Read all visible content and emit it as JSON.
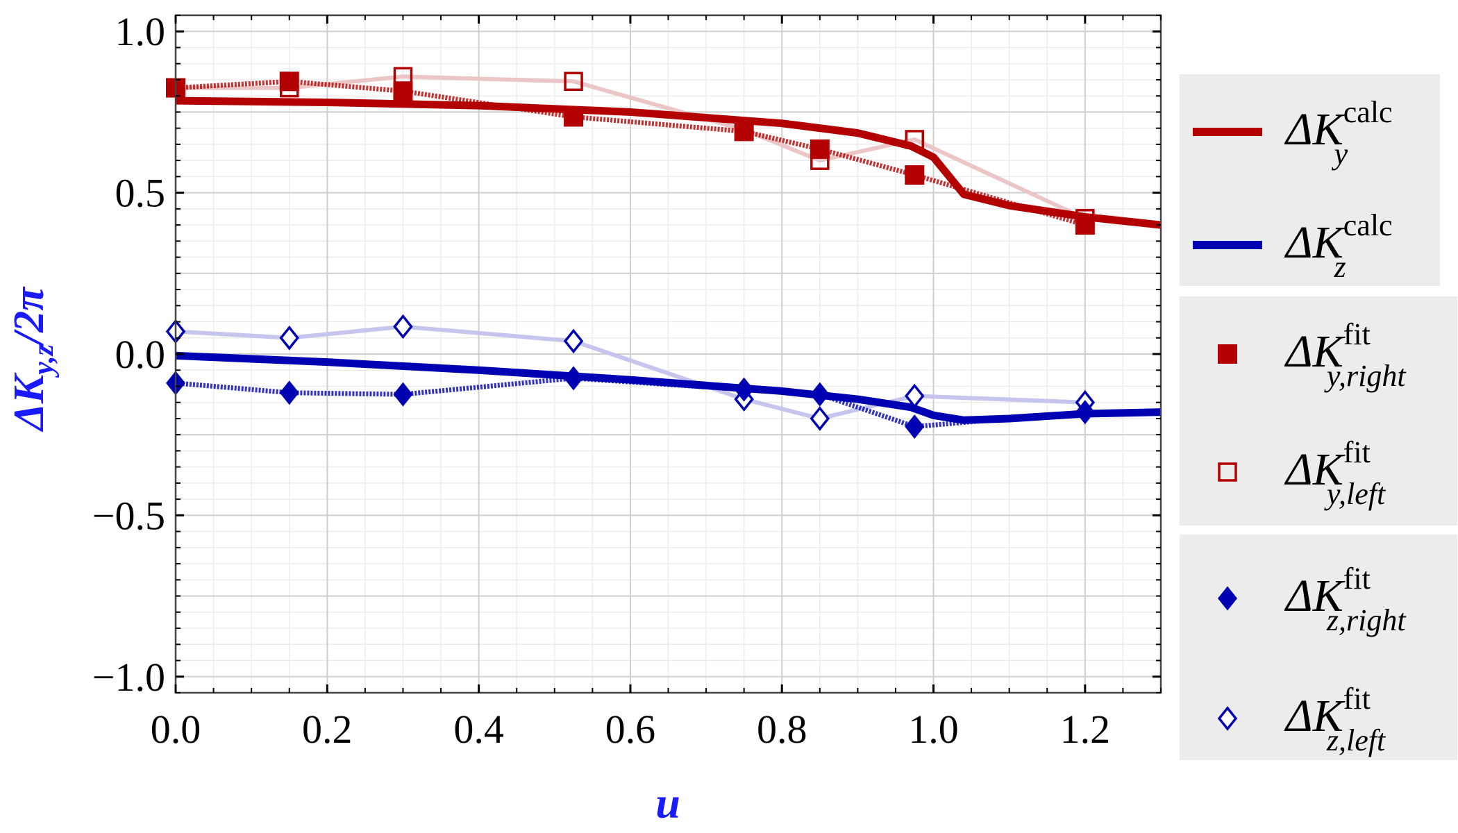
{
  "chart_data": {
    "type": "line",
    "xlabel": "u",
    "ylabel_main": "ΔK",
    "ylabel_sub": "y,z",
    "ylabel_rest": "/2π",
    "xlim": [
      0.0,
      1.3
    ],
    "ylim": [
      -1.05,
      1.05
    ],
    "x_ticks": [
      0.0,
      0.2,
      0.4,
      0.6,
      0.8,
      1.0,
      1.2
    ],
    "x_tick_labels": [
      "0.0",
      "0.2",
      "0.4",
      "0.6",
      "0.8",
      "1.0",
      "1.2"
    ],
    "y_ticks": [
      1.0,
      0.5,
      0.0,
      -0.5,
      -1.0
    ],
    "y_tick_labels": [
      "1.0",
      "0.5",
      "0.0",
      "−0.5",
      "−1.0"
    ],
    "grid": true,
    "legend_position": "right",
    "colors": {
      "red": "#b30000",
      "blue": "#0000b3",
      "red_light": "#ecc6c6",
      "blue_light": "#c5c5ee",
      "legend_bg": "#ececec"
    },
    "series": [
      {
        "id": "ky_calc",
        "legend": {
          "main": "ΔK",
          "sub": "y",
          "sup": "calc"
        },
        "style": "line",
        "color": "#b30000",
        "x": [
          0.0,
          0.2,
          0.4,
          0.6,
          0.8,
          0.9,
          0.97,
          1.0,
          1.04,
          1.1,
          1.2,
          1.3
        ],
        "y": [
          0.785,
          0.78,
          0.77,
          0.75,
          0.715,
          0.685,
          0.645,
          0.61,
          0.495,
          0.46,
          0.425,
          0.4
        ]
      },
      {
        "id": "kz_calc",
        "legend": {
          "main": "ΔK",
          "sub": "z",
          "sup": "calc"
        },
        "style": "line",
        "color": "#0000b3",
        "x": [
          0.0,
          0.2,
          0.4,
          0.6,
          0.8,
          0.9,
          0.97,
          1.0,
          1.04,
          1.1,
          1.2,
          1.3
        ],
        "y": [
          -0.005,
          -0.025,
          -0.05,
          -0.08,
          -0.115,
          -0.14,
          -0.165,
          -0.19,
          -0.205,
          -0.2,
          -0.185,
          -0.18
        ]
      },
      {
        "id": "ky_right",
        "legend": {
          "main": "ΔK",
          "sub": "y,right",
          "sup": "fit"
        },
        "style": "marker-filled-square",
        "color": "#b30000",
        "x": [
          0.0,
          0.15,
          0.3,
          0.525,
          0.75,
          0.85,
          0.975,
          1.2
        ],
        "y": [
          0.825,
          0.845,
          0.815,
          0.735,
          0.69,
          0.635,
          0.555,
          0.4
        ]
      },
      {
        "id": "ky_left",
        "legend": {
          "main": "ΔK",
          "sub": "y,left",
          "sup": "fit"
        },
        "style": "marker-open-square",
        "color": "#b30000",
        "x": [
          0.0,
          0.15,
          0.3,
          0.525,
          0.75,
          0.85,
          0.975,
          1.2
        ],
        "y": [
          0.825,
          0.825,
          0.86,
          0.845,
          0.695,
          0.6,
          0.665,
          0.42
        ]
      },
      {
        "id": "kz_right",
        "legend": {
          "main": "ΔK",
          "sub": "z,right",
          "sup": "fit"
        },
        "style": "marker-filled-diamond",
        "color": "#0000b3",
        "x": [
          0.0,
          0.15,
          0.3,
          0.525,
          0.75,
          0.85,
          0.975,
          1.2
        ],
        "y": [
          -0.09,
          -0.12,
          -0.125,
          -0.075,
          -0.11,
          -0.125,
          -0.225,
          -0.18
        ]
      },
      {
        "id": "kz_left",
        "legend": {
          "main": "ΔK",
          "sub": "z,left",
          "sup": "fit"
        },
        "style": "marker-open-diamond",
        "color": "#0000b3",
        "x": [
          0.0,
          0.15,
          0.3,
          0.525,
          0.75,
          0.85,
          0.975,
          1.2
        ],
        "y": [
          0.07,
          0.05,
          0.085,
          0.04,
          -0.14,
          -0.2,
          -0.13,
          -0.15
        ]
      }
    ]
  }
}
